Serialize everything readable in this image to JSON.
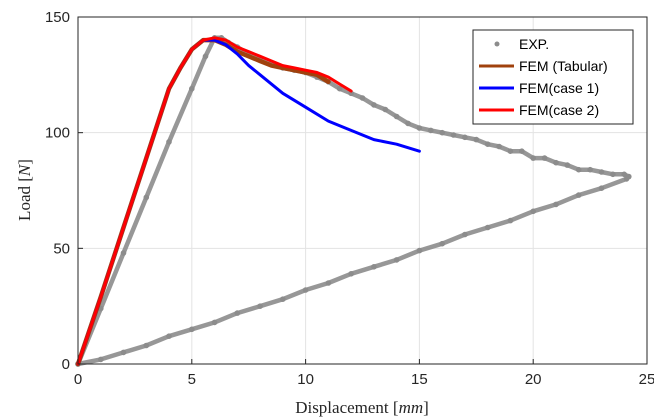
{
  "chart_data": {
    "type": "line",
    "xlabel": "Displacement [mm]",
    "xlabel_text": "Displacement ",
    "xlabel_unit": "mm",
    "ylabel": "Load [N]",
    "ylabel_text": "Load ",
    "ylabel_unit": "N",
    "xlim": [
      0,
      25
    ],
    "ylim": [
      0,
      150
    ],
    "xticks": [
      0,
      5,
      10,
      15,
      20,
      25
    ],
    "yticks": [
      0,
      50,
      100,
      150
    ],
    "grid": true,
    "legend_position": "top-right",
    "series": [
      {
        "name": "EXP.",
        "style": "dots",
        "color": "#8c8c8c",
        "x": [
          0,
          1,
          2,
          3,
          4,
          5,
          5.6,
          6.0,
          6.3,
          6.6,
          7,
          7.5,
          8,
          8.5,
          9,
          9.5,
          10,
          10.5,
          11,
          11.5,
          12,
          12.5,
          13,
          13.5,
          14,
          14.5,
          15,
          15.5,
          16,
          16.5,
          17,
          17.5,
          18,
          18.5,
          19,
          19.5,
          20,
          20.5,
          21,
          21.5,
          22,
          22.5,
          23,
          23.5,
          24.0,
          24.2,
          24.1,
          23,
          22,
          21,
          20,
          19,
          18,
          17,
          16,
          15,
          14,
          13,
          12,
          11,
          10,
          9,
          8,
          7,
          6,
          5,
          4,
          3,
          2,
          1,
          0
        ],
        "y": [
          0,
          24,
          48,
          72,
          96,
          119,
          133,
          141,
          141,
          139,
          137,
          134,
          132,
          130,
          128,
          127,
          126,
          124,
          122,
          119,
          117,
          115,
          112,
          110,
          107,
          104,
          102,
          101,
          100,
          99,
          98,
          97,
          95,
          94,
          92,
          92,
          89,
          89,
          87,
          86,
          84,
          84,
          83,
          82,
          82,
          81,
          80,
          76,
          73,
          69,
          66,
          62,
          59,
          56,
          52,
          49,
          45,
          42,
          39,
          35,
          32,
          28,
          25,
          22,
          18,
          15,
          12,
          8,
          5,
          2,
          0
        ]
      },
      {
        "name": "FEM (Tabular)",
        "style": "line",
        "color": "#a0410d",
        "x": [
          0,
          1,
          2,
          3,
          4,
          4.5,
          5,
          5.5,
          6,
          6.5,
          7,
          7.5,
          8,
          8.5,
          9,
          9.5,
          10,
          10.5,
          11
        ],
        "y": [
          0,
          29,
          59,
          89,
          119,
          128,
          136,
          140,
          140,
          138,
          135,
          133,
          131,
          129,
          128,
          127,
          126,
          125,
          122
        ]
      },
      {
        "name": "FEM(case 1)",
        "style": "line",
        "color": "#0000ff",
        "x": [
          0,
          1,
          2,
          3,
          4,
          4.5,
          5,
          5.5,
          6,
          6.5,
          7,
          7.5,
          8,
          9,
          10,
          11,
          12,
          13,
          14,
          15
        ],
        "y": [
          0,
          29,
          59,
          89,
          119,
          128,
          136,
          140,
          140,
          138,
          134,
          129,
          125,
          117,
          111,
          105,
          101,
          97,
          95,
          92
        ]
      },
      {
        "name": "FEM(case 2)",
        "style": "line",
        "color": "#ff0000",
        "x": [
          0,
          1,
          2,
          3,
          4,
          4.5,
          5,
          5.5,
          6,
          6.5,
          7,
          7.5,
          8,
          8.5,
          9,
          9.5,
          10,
          10.5,
          11,
          11.5,
          12
        ],
        "y": [
          0,
          29,
          59,
          89,
          119,
          128,
          136,
          140,
          141,
          140,
          137,
          135,
          133,
          131,
          129,
          128,
          127,
          126,
          124,
          121,
          118
        ]
      }
    ]
  }
}
